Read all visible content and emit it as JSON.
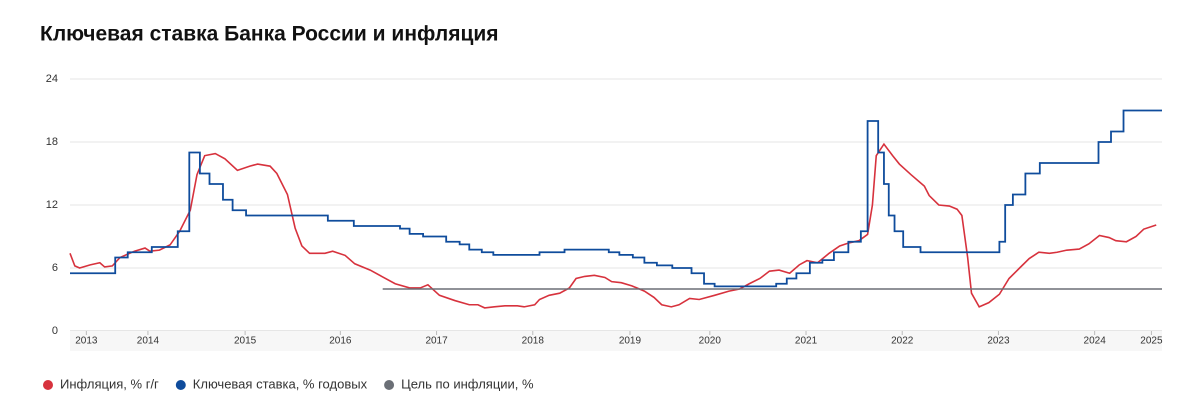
{
  "chart_data": {
    "type": "line",
    "title": "Ключевая ставка Банка России и инфляция",
    "xlim": [
      2013.7,
      2025.05
    ],
    "xticks": [
      {
        "value": 2013.87,
        "label": "2013"
      },
      {
        "value": 2014.51,
        "label": "2014"
      },
      {
        "value": 2015.52,
        "label": "2015"
      },
      {
        "value": 2016.51,
        "label": "2016"
      },
      {
        "value": 2017.51,
        "label": "2017"
      },
      {
        "value": 2018.51,
        "label": "2018"
      },
      {
        "value": 2019.52,
        "label": "2019"
      },
      {
        "value": 2020.35,
        "label": "2020"
      },
      {
        "value": 2021.35,
        "label": "2021"
      },
      {
        "value": 2022.35,
        "label": "2022"
      },
      {
        "value": 2023.35,
        "label": "2023"
      },
      {
        "value": 2024.35,
        "label": "2024"
      },
      {
        "value": 2024.94,
        "label": "2025"
      }
    ],
    "ylim": [
      0,
      24
    ],
    "yticks": [
      0,
      6,
      12,
      18,
      24
    ],
    "grid": true,
    "legend": "bottom-left",
    "series": [
      {
        "name": "Инфляция, % г/г",
        "color": "#d7323d",
        "x": [
          2013.7,
          2013.75,
          2013.8,
          2013.91,
          2014.01,
          2014.06,
          2014.14,
          2014.22,
          2014.37,
          2014.48,
          2014.53,
          2014.63,
          2014.74,
          2014.84,
          2014.95,
          2015.02,
          2015.1,
          2015.21,
          2015.31,
          2015.44,
          2015.57,
          2015.65,
          2015.78,
          2015.85,
          2015.96,
          2016.04,
          2016.11,
          2016.19,
          2016.35,
          2016.43,
          2016.56,
          2016.66,
          2016.82,
          2016.94,
          2017.08,
          2017.23,
          2017.34,
          2017.42,
          2017.54,
          2017.7,
          2017.85,
          2017.94,
          2018.01,
          2018.11,
          2018.22,
          2018.35,
          2018.42,
          2018.53,
          2018.58,
          2018.68,
          2018.79,
          2018.89,
          2018.96,
          2019.05,
          2019.15,
          2019.26,
          2019.33,
          2019.43,
          2019.54,
          2019.67,
          2019.77,
          2019.85,
          2019.95,
          2020.03,
          2020.14,
          2020.24,
          2020.4,
          2020.55,
          2020.66,
          2020.76,
          2020.87,
          2020.97,
          2021.07,
          2021.18,
          2021.28,
          2021.36,
          2021.47,
          2021.59,
          2021.7,
          2021.8,
          2021.9,
          2021.99,
          2022.04,
          2022.08,
          2022.16,
          2022.25,
          2022.32,
          2022.44,
          2022.58,
          2022.63,
          2022.73,
          2022.84,
          2022.92,
          2022.97,
          2023.03,
          2023.07,
          2023.15,
          2023.25,
          2023.36,
          2023.46,
          2023.57,
          2023.67,
          2023.77,
          2023.88,
          2023.96,
          2024.06,
          2024.19,
          2024.29,
          2024.4,
          2024.5,
          2024.57,
          2024.68,
          2024.78,
          2024.86,
          2024.99
        ],
        "values": [
          7.4,
          6.2,
          6.0,
          6.3,
          6.5,
          6.1,
          6.2,
          7.0,
          7.6,
          7.9,
          7.6,
          7.7,
          8.2,
          9.5,
          11.5,
          14.9,
          16.7,
          16.9,
          16.4,
          15.3,
          15.7,
          15.9,
          15.7,
          15.0,
          13,
          9.8,
          8.1,
          7.4,
          7.4,
          7.6,
          7.2,
          6.4,
          5.8,
          5.2,
          4.5,
          4.1,
          4.1,
          4.4,
          3.4,
          2.9,
          2.5,
          2.5,
          2.2,
          2.3,
          2.4,
          2.4,
          2.3,
          2.5,
          3.0,
          3.4,
          3.6,
          4.1,
          5.0,
          5.2,
          5.3,
          5.1,
          4.7,
          4.6,
          4.3,
          3.8,
          3.2,
          2.5,
          2.3,
          2.5,
          3.1,
          3.0,
          3.4,
          3.8,
          4.0,
          4.5,
          5.0,
          5.7,
          5.8,
          5.5,
          6.3,
          6.7,
          6.5,
          7.4,
          8.1,
          8.4,
          8.6,
          9.2,
          12,
          16.7,
          17.8,
          16.7,
          15.9,
          14.9,
          13.8,
          12.9,
          12.0,
          11.9,
          11.6,
          11.0,
          7,
          3.6,
          2.3,
          2.7,
          3.5,
          5.0,
          6.0,
          6.9,
          7.5,
          7.4,
          7.5,
          7.7,
          7.8,
          8.3,
          9.1,
          8.9,
          8.6,
          8.5,
          9.0,
          9.7,
          10.1
        ]
      },
      {
        "name": "Ключевая ставка, % годовых",
        "color": "#0f4c9c",
        "step": true,
        "x": [
          2013.7,
          2014.17,
          2014.3,
          2014.55,
          2014.82,
          2014.94,
          2015.05,
          2015.15,
          2015.29,
          2015.39,
          2015.53,
          2016.38,
          2016.65,
          2017.13,
          2017.23,
          2017.37,
          2017.61,
          2017.75,
          2017.85,
          2017.98,
          2018.1,
          2018.58,
          2018.84,
          2019.3,
          2019.41,
          2019.55,
          2019.67,
          2019.8,
          2019.96,
          2020.16,
          2020.29,
          2020.4,
          2021.04,
          2021.15,
          2021.25,
          2021.39,
          2021.52,
          2021.64,
          2021.79,
          2021.92,
          2021.99,
          2022.1,
          2022.16,
          2022.21,
          2022.27,
          2022.36,
          2022.54,
          2023.36,
          2023.42,
          2023.5,
          2023.63,
          2023.78,
          2024.39,
          2024.52,
          2024.65
        ],
        "values": [
          5.5,
          7.0,
          7.5,
          8.0,
          9.5,
          17.0,
          15.0,
          14.0,
          12.5,
          11.5,
          11.0,
          10.5,
          10.0,
          9.75,
          9.25,
          9.0,
          8.5,
          8.25,
          7.75,
          7.5,
          7.25,
          7.5,
          7.75,
          7.5,
          7.25,
          7.0,
          6.5,
          6.25,
          6.0,
          5.5,
          4.5,
          4.25,
          4.5,
          5.0,
          5.5,
          6.5,
          6.75,
          7.5,
          8.5,
          9.5,
          20.0,
          17.0,
          14.0,
          11.0,
          9.5,
          8.0,
          7.5,
          8.5,
          12.0,
          13.0,
          15.0,
          16.0,
          18.0,
          19.0,
          21.0
        ]
      },
      {
        "name": "Цель по инфляции, %",
        "color": "#6b6f76",
        "x": [
          2016.95,
          2025.05
        ],
        "values": [
          4,
          4
        ]
      }
    ]
  }
}
